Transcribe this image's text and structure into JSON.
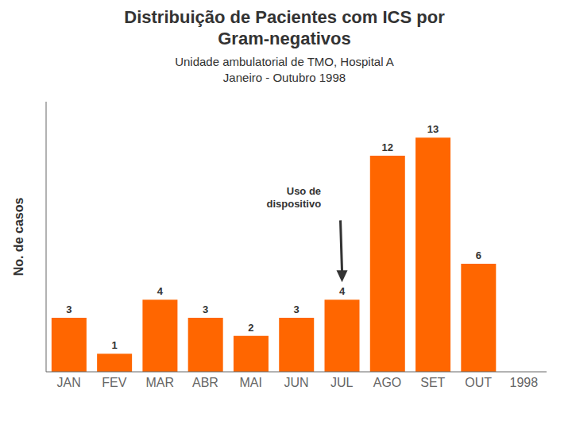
{
  "chart_data": {
    "type": "bar",
    "title": "Distribuição de Pacientes com ICS por\nGram-negativos",
    "subtitle": "Unidade ambulatorial de TMO, Hospital A\nJaneiro - Outubro 1998",
    "categories": [
      "JAN",
      "FEV",
      "MAR",
      "ABR",
      "MAI",
      "JUN",
      "JUL",
      "AGO",
      "SET",
      "OUT",
      "1998"
    ],
    "values": [
      3,
      1,
      4,
      3,
      2,
      3,
      4,
      12,
      13,
      6,
      null
    ],
    "color": "#FF6600",
    "ylabel": "No. de casos",
    "ylim": [
      0,
      15
    ],
    "grid": false,
    "data_labels": true,
    "tick_labels": "x",
    "annotations": [
      {
        "text": "Uso de\ndispositivo",
        "x": "JUL"
      }
    ]
  }
}
